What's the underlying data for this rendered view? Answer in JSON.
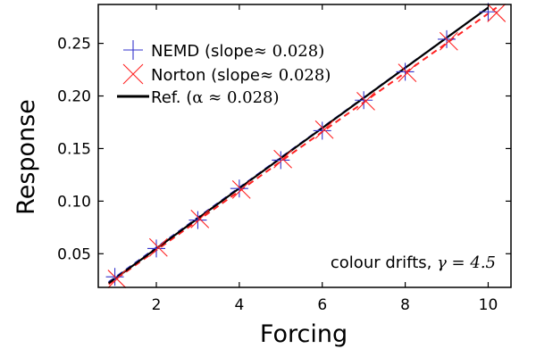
{
  "chart_data": {
    "type": "scatter",
    "xlabel": "Forcing",
    "ylabel": "Response",
    "xlim": [
      0.6,
      10.55
    ],
    "ylim": [
      0.018,
      0.287
    ],
    "xticks": [
      2,
      4,
      6,
      8,
      10
    ],
    "yticks": [
      0.05,
      0.1,
      0.15,
      0.2,
      0.25
    ],
    "ytick_labels": [
      "0.05",
      "0.10",
      "0.15",
      "0.20",
      "0.25"
    ],
    "xtick_labels": [
      "2",
      "4",
      "6",
      "8",
      "10"
    ],
    "grid": false,
    "legend_position": "top-left",
    "annotation": {
      "prefix": "colour drifts, ",
      "math": "γ = 4.5"
    },
    "series": [
      {
        "name": "NEMD (slope ≈ 0.028)",
        "legend_prefix": "NEMD (slope",
        "legend_math": "≈ 0.028)",
        "marker": "plus",
        "color": "#3333cc",
        "fit_style": "dashed",
        "x": [
          1,
          2,
          3,
          4,
          5,
          6,
          7,
          8,
          9,
          10
        ],
        "y": [
          0.028,
          0.055,
          0.082,
          0.112,
          0.139,
          0.167,
          0.196,
          0.223,
          0.254,
          0.28
        ]
      },
      {
        "name": "Norton (slope ≈ 0.028)",
        "legend_prefix": "Norton (slope",
        "legend_math": "≈ 0.028)",
        "marker": "cross",
        "color": "#ff2222",
        "fit_style": "dashed",
        "x": [
          1.05,
          2.05,
          3.05,
          4.05,
          5.05,
          6.05,
          7.05,
          8.05,
          9.05,
          10.2
        ],
        "y": [
          0.026,
          0.056,
          0.083,
          0.111,
          0.14,
          0.168,
          0.195,
          0.222,
          0.252,
          0.279
        ]
      },
      {
        "name": "Ref. (α ≈ 0.028)",
        "legend_prefix": "Ref. (",
        "legend_math": "α ≈ 0.028)",
        "marker": "line",
        "color": "#000000",
        "x": [
          0.85,
          10.0
        ],
        "y": [
          0.022,
          0.284
        ]
      }
    ],
    "fit_lines": [
      {
        "color": "#3333cc",
        "x": [
          0.85,
          10.0
        ],
        "y": [
          0.023,
          0.284
        ]
      },
      {
        "color": "#ff2222",
        "x": [
          0.85,
          10.2
        ],
        "y": [
          0.021,
          0.284
        ]
      }
    ]
  }
}
